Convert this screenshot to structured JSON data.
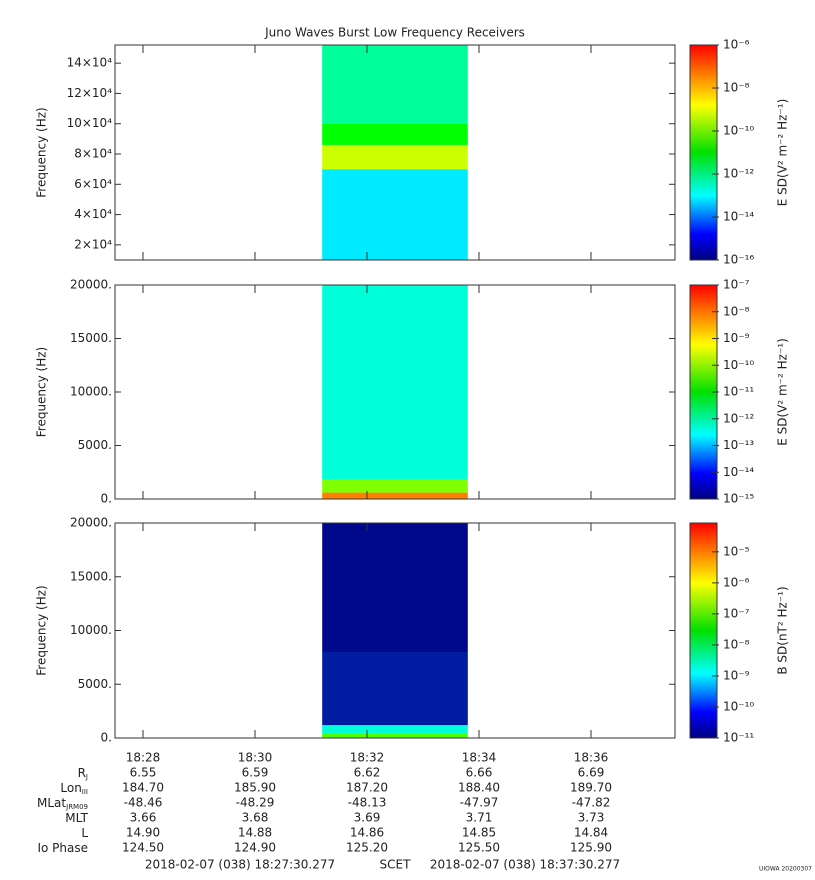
{
  "chart_data": [
    {
      "type": "heatmap",
      "title": "Juno Waves Burst Low Frequency Receivers",
      "ylabel": "Frequency (Hz)",
      "xlim": [
        27.5,
        37.5
      ],
      "xticks": [
        28,
        30,
        32,
        34,
        36
      ],
      "x_range": [
        31.2,
        33.8
      ],
      "ylim": [
        10000,
        152000
      ],
      "yticks": [
        {
          "value": 20000,
          "label": "2×10⁴"
        },
        {
          "value": 40000,
          "label": "4×10⁴"
        },
        {
          "value": 60000,
          "label": "6×10⁴"
        },
        {
          "value": 80000,
          "label": "8×10⁴"
        },
        {
          "value": 100000,
          "label": "10×10⁴"
        },
        {
          "value": 120000,
          "label": "12×10⁴"
        },
        {
          "value": 140000,
          "label": "14×10⁴"
        }
      ],
      "bands": [
        {
          "ylim": [
            10000,
            70000
          ],
          "z": 2e-14
        },
        {
          "ylim": [
            70000,
            86000
          ],
          "z": 1e-09
        },
        {
          "ylim": [
            86000,
            100000
          ],
          "z": 1e-11
        },
        {
          "ylim": [
            100000,
            152000
          ],
          "z": 3e-13
        }
      ],
      "colorbar": {
        "scale": "log",
        "zlim": [
          1e-16,
          1e-06
        ],
        "label": "E SD(V² m⁻² Hz⁻¹)",
        "ticks": [
          {
            "value": 1e-16,
            "label": "10⁻¹⁶"
          },
          {
            "value": 1e-14,
            "label": "10⁻¹⁴"
          },
          {
            "value": 1e-12,
            "label": "10⁻¹²"
          },
          {
            "value": 1e-10,
            "label": "10⁻¹⁰"
          },
          {
            "value": 1e-08,
            "label": "10⁻⁸"
          },
          {
            "value": 1e-06,
            "label": "10⁻⁶"
          }
        ]
      }
    },
    {
      "type": "heatmap",
      "ylabel": "Frequency (Hz)",
      "xlim": [
        27.5,
        37.5
      ],
      "xticks": [
        28,
        30,
        32,
        34,
        36
      ],
      "x_range": [
        31.2,
        33.8
      ],
      "ylim": [
        0,
        20000
      ],
      "yticks": [
        {
          "value": 0,
          "label": "0."
        },
        {
          "value": 5000,
          "label": "5000."
        },
        {
          "value": 10000,
          "label": "10000."
        },
        {
          "value": 15000,
          "label": "15000."
        },
        {
          "value": 20000,
          "label": "20000."
        }
      ],
      "bands": [
        {
          "ylim": [
            0,
            600
          ],
          "z": 1e-08
        },
        {
          "ylim": [
            600,
            1800
          ],
          "z": 1e-10
        },
        {
          "ylim": [
            1800,
            20000
          ],
          "z": 2e-13
        }
      ],
      "colorbar": {
        "scale": "log",
        "zlim": [
          1e-15,
          1e-07
        ],
        "label": "E SD(V² m⁻² Hz⁻¹)",
        "ticks": [
          {
            "value": 1e-15,
            "label": "10⁻¹⁵"
          },
          {
            "value": 1e-14,
            "label": "10⁻¹⁴"
          },
          {
            "value": 1e-13,
            "label": "10⁻¹³"
          },
          {
            "value": 1e-12,
            "label": "10⁻¹²"
          },
          {
            "value": 1e-11,
            "label": "10⁻¹¹"
          },
          {
            "value": 1e-10,
            "label": "10⁻¹⁰"
          },
          {
            "value": 1e-09,
            "label": "10⁻⁹"
          },
          {
            "value": 1e-08,
            "label": "10⁻⁸"
          },
          {
            "value": 1e-07,
            "label": "10⁻⁷"
          }
        ]
      }
    },
    {
      "type": "heatmap",
      "ylabel": "Frequency (Hz)",
      "xlim": [
        27.5,
        37.5
      ],
      "xticks": [
        {
          "value": 28,
          "label": "18:28"
        },
        {
          "value": 30,
          "label": "18:30"
        },
        {
          "value": 32,
          "label": "18:32"
        },
        {
          "value": 34,
          "label": "18:34"
        },
        {
          "value": 36,
          "label": "18:36"
        }
      ],
      "x_range": [
        31.2,
        33.8
      ],
      "ylim": [
        0,
        20000
      ],
      "yticks": [
        {
          "value": 0,
          "label": "0."
        },
        {
          "value": 5000,
          "label": "5000."
        },
        {
          "value": 10000,
          "label": "10000."
        },
        {
          "value": 15000,
          "label": "15000."
        },
        {
          "value": 20000,
          "label": "20000."
        }
      ],
      "bands": [
        {
          "ylim": [
            0,
            400
          ],
          "z": 1e-07
        },
        {
          "ylim": [
            400,
            1200
          ],
          "z": 1e-09
        },
        {
          "ylim": [
            1200,
            8000
          ],
          "z": 2e-11
        },
        {
          "ylim": [
            8000,
            20000
          ],
          "z": 1.3e-11
        }
      ],
      "colorbar": {
        "scale": "log",
        "zlim": [
          1e-11,
          8.5e-05
        ],
        "label": "B SD(nT² Hz⁻¹)",
        "ticks": [
          {
            "value": 1e-11,
            "label": "10⁻¹¹"
          },
          {
            "value": 1e-10,
            "label": "10⁻¹⁰"
          },
          {
            "value": 1e-09,
            "label": "10⁻⁹"
          },
          {
            "value": 1e-08,
            "label": "10⁻⁸"
          },
          {
            "value": 1e-07,
            "label": "10⁻⁷"
          },
          {
            "value": 1e-06,
            "label": "10⁻⁶"
          },
          {
            "value": 1e-05,
            "label": "10⁻⁵"
          }
        ]
      }
    }
  ],
  "ephemeris": {
    "rows": [
      {
        "label": "R",
        "sub": "J",
        "values": [
          "6.55",
          "6.59",
          "6.62",
          "6.66",
          "6.69"
        ]
      },
      {
        "label": "Lon",
        "sub": "III",
        "values": [
          "184.70",
          "185.90",
          "187.20",
          "188.40",
          "189.70"
        ]
      },
      {
        "label": "MLat",
        "sub": "JRM09",
        "values": [
          "-48.46",
          "-48.29",
          "-48.13",
          "-47.97",
          "-47.82"
        ]
      },
      {
        "label": "MLT",
        "values": [
          "3.66",
          "3.68",
          "3.69",
          "3.71",
          "3.73"
        ]
      },
      {
        "label": "L",
        "values": [
          "14.90",
          "14.88",
          "14.86",
          "14.85",
          "14.84"
        ]
      },
      {
        "label": "Io Phase",
        "values": [
          "124.50",
          "124.90",
          "125.20",
          "125.50",
          "125.90"
        ]
      }
    ]
  },
  "footer": {
    "start": "2018-02-07 (038) 18:27:30.277",
    "label": "SCET",
    "end": "2018-02-07 (038) 18:37:30.277",
    "stamp": "UIOWA 20200307"
  }
}
